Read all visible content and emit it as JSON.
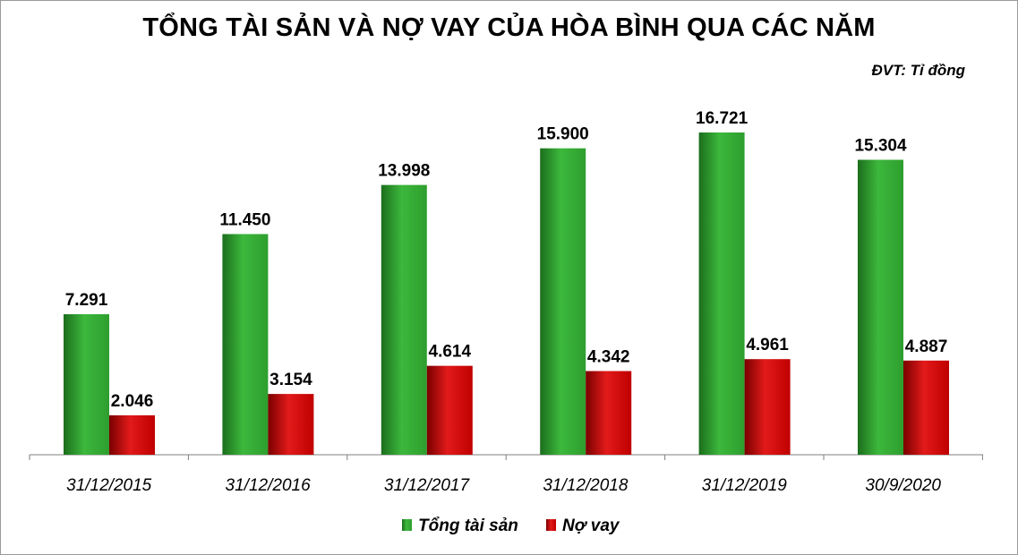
{
  "chart_data": {
    "type": "bar",
    "title": "TỔNG TÀI SẢN VÀ NỢ VAY CỦA HÒA BÌNH QUA CÁC NĂM",
    "unit": "ĐVT:  Tỉ đồng",
    "categories": [
      "31/12/2015",
      "31/12/2016",
      "31/12/2017",
      "31/12/2018",
      "31/12/2019",
      "30/9/2020"
    ],
    "series": [
      {
        "name": "Tổng tài sản",
        "color": "#2e9e2e",
        "values": [
          7291,
          11450,
          13998,
          15900,
          16721,
          15304
        ],
        "labels": [
          "7.291",
          "11.450",
          "13.998",
          "15.900",
          "16.721",
          "15.304"
        ]
      },
      {
        "name": "Nợ vay",
        "color": "#c00000",
        "values": [
          2046,
          3154,
          4614,
          4342,
          4961,
          4887
        ],
        "labels": [
          "2.046",
          "3.154",
          "4.614",
          "4.342",
          "4.961",
          "4.887"
        ]
      }
    ],
    "ylim": [
      0,
      19000
    ],
    "grid": false,
    "legend": "bottom-center"
  }
}
